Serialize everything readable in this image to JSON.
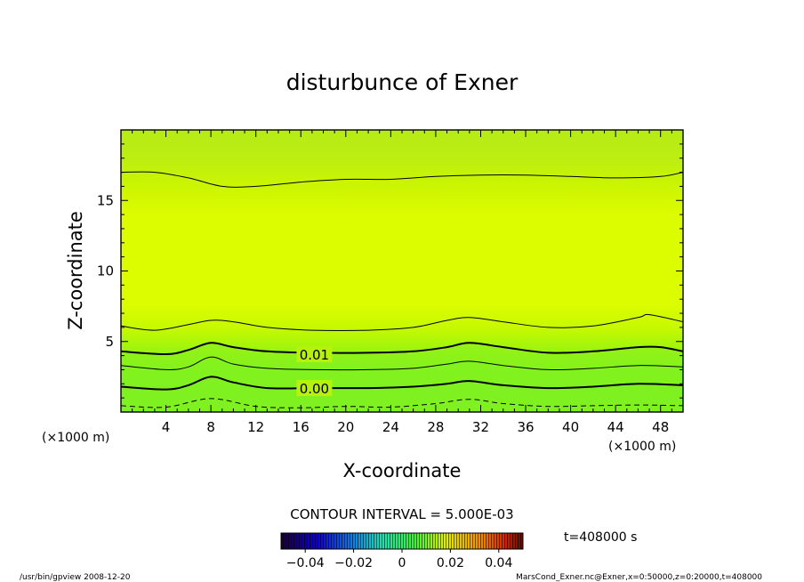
{
  "chart_data": {
    "type": "heatmap",
    "title": "disturbunce of Exner",
    "xlabel": "X-coordinate",
    "ylabel": "Z-coordinate",
    "x_unit": "(×1000 m)",
    "x_unit_right": "(×1000 m)",
    "xlim": [
      0,
      50
    ],
    "ylim": [
      0,
      20
    ],
    "x_ticks": [
      4,
      8,
      12,
      16,
      20,
      24,
      28,
      32,
      36,
      40,
      44,
      48
    ],
    "y_ticks": [
      5,
      10,
      15
    ],
    "contour_interval_text": "CONTOUR INTERVAL = 5.000E-03",
    "time_label": "t=408000 s",
    "colorbar": {
      "range": [
        -0.05,
        0.05
      ],
      "ticks": [
        -0.04,
        -0.02,
        0,
        0.02,
        0.04
      ],
      "tick_labels": [
        "−0.04",
        "−0.02",
        "0",
        "0.02",
        "0.04"
      ]
    },
    "contour_labels": [
      {
        "text": "0.01",
        "x": 17.2,
        "y": 4.1
      },
      {
        "text": "0.00",
        "x": 17.2,
        "y": 1.7
      }
    ],
    "contours": [
      {
        "level": -0.005,
        "style": "dashed",
        "points": [
          [
            0,
            0.45
          ],
          [
            4,
            0.35
          ],
          [
            8,
            0.95
          ],
          [
            12,
            0.4
          ],
          [
            16,
            0.3
          ],
          [
            20,
            0.4
          ],
          [
            24,
            0.35
          ],
          [
            28,
            0.6
          ],
          [
            31,
            0.9
          ],
          [
            34,
            0.6
          ],
          [
            38,
            0.4
          ],
          [
            42,
            0.45
          ],
          [
            46,
            0.5
          ],
          [
            50,
            0.45
          ]
        ]
      },
      {
        "level": 0.0,
        "style": "bold",
        "points": [
          [
            0,
            1.8
          ],
          [
            4,
            1.6
          ],
          [
            6,
            1.9
          ],
          [
            8,
            2.5
          ],
          [
            10,
            2.1
          ],
          [
            13,
            1.7
          ],
          [
            17,
            1.7
          ],
          [
            22,
            1.7
          ],
          [
            26,
            1.8
          ],
          [
            29,
            2.0
          ],
          [
            31,
            2.2
          ],
          [
            34,
            1.9
          ],
          [
            38,
            1.7
          ],
          [
            42,
            1.8
          ],
          [
            46,
            2.0
          ],
          [
            50,
            1.9
          ]
        ]
      },
      {
        "level": 0.005,
        "style": "thin",
        "points": [
          [
            0,
            3.3
          ],
          [
            4,
            3.0
          ],
          [
            6,
            3.2
          ],
          [
            8,
            3.9
          ],
          [
            10,
            3.4
          ],
          [
            13,
            3.1
          ],
          [
            17,
            3.0
          ],
          [
            22,
            3.0
          ],
          [
            26,
            3.1
          ],
          [
            29,
            3.4
          ],
          [
            31,
            3.6
          ],
          [
            34,
            3.3
          ],
          [
            38,
            3.0
          ],
          [
            42,
            3.1
          ],
          [
            46,
            3.3
          ],
          [
            50,
            3.2
          ]
        ]
      },
      {
        "level": 0.01,
        "style": "bold",
        "points": [
          [
            0,
            4.3
          ],
          [
            4,
            4.1
          ],
          [
            6,
            4.4
          ],
          [
            8,
            4.9
          ],
          [
            10,
            4.6
          ],
          [
            13,
            4.3
          ],
          [
            17,
            4.2
          ],
          [
            22,
            4.2
          ],
          [
            26,
            4.3
          ],
          [
            29,
            4.6
          ],
          [
            31,
            4.9
          ],
          [
            34,
            4.6
          ],
          [
            38,
            4.2
          ],
          [
            42,
            4.3
          ],
          [
            46,
            4.6
          ],
          [
            48,
            4.6
          ],
          [
            50,
            4.3
          ]
        ]
      },
      {
        "level": 0.015,
        "style": "thin",
        "points": [
          [
            0,
            6.1
          ],
          [
            3,
            5.8
          ],
          [
            6,
            6.2
          ],
          [
            8,
            6.5
          ],
          [
            10,
            6.4
          ],
          [
            13,
            6.0
          ],
          [
            17,
            5.8
          ],
          [
            22,
            5.8
          ],
          [
            26,
            6.0
          ],
          [
            29,
            6.5
          ],
          [
            31,
            6.7
          ],
          [
            34,
            6.4
          ],
          [
            38,
            6.0
          ],
          [
            42,
            6.1
          ],
          [
            46,
            6.7
          ],
          [
            47,
            6.9
          ],
          [
            50,
            6.4
          ]
        ]
      },
      {
        "level": 0.02,
        "style": "thin",
        "points": [
          [
            0,
            17.0
          ],
          [
            3,
            17.0
          ],
          [
            6,
            16.6
          ],
          [
            9,
            16.0
          ],
          [
            12,
            16.0
          ],
          [
            16,
            16.3
          ],
          [
            20,
            16.5
          ],
          [
            24,
            16.5
          ],
          [
            28,
            16.7
          ],
          [
            32,
            16.8
          ],
          [
            36,
            16.8
          ],
          [
            40,
            16.7
          ],
          [
            44,
            16.6
          ],
          [
            48,
            16.7
          ],
          [
            50,
            17.0
          ]
        ]
      }
    ]
  },
  "footer": {
    "left": "/usr/bin/gpview   2008-12-20",
    "right": "MarsCond_Exner.nc@Exner,x=0:50000,z=0:20000,t=408000"
  }
}
